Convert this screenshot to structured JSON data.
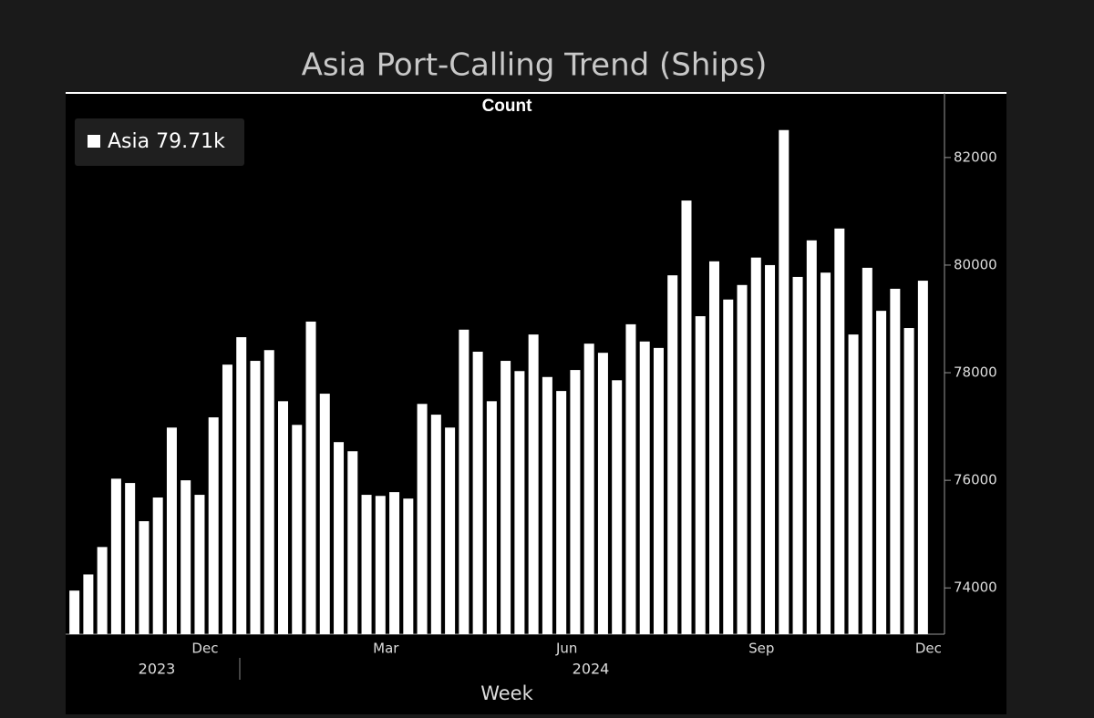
{
  "chart_data": {
    "type": "bar",
    "title": "Asia Port-Calling Trend (Ships)",
    "y_axis_label": "Count",
    "x_axis_label": "Week",
    "legend_text": "Asia 79.71k",
    "color": "#ffffff",
    "series": [
      {
        "name": "Asia",
        "color": "#ffffff",
        "values": [
          73950,
          74250,
          74760,
          76030,
          75950,
          75240,
          75680,
          76980,
          76000,
          75730,
          77170,
          78150,
          78660,
          78220,
          78420,
          77470,
          77030,
          78950,
          77610,
          76710,
          76540,
          75730,
          75710,
          75780,
          75660,
          77420,
          77220,
          76980,
          78800,
          78390,
          77470,
          78220,
          78030,
          78710,
          77920,
          77660,
          78050,
          78540,
          78370,
          77860,
          78900,
          78580,
          78460,
          79810,
          81200,
          79050,
          80070,
          79360,
          79630,
          80140,
          80000,
          82510,
          79780,
          80460,
          79860,
          80680,
          78710,
          79950,
          79150,
          79560,
          78830,
          79710
        ]
      }
    ],
    "categories": [
      null,
      null,
      null,
      null,
      null,
      null,
      null,
      null,
      null,
      "Dec",
      null,
      null,
      null,
      null,
      null,
      null,
      null,
      null,
      null,
      null,
      null,
      null,
      "Mar",
      null,
      null,
      null,
      null,
      null,
      null,
      null,
      null,
      null,
      null,
      null,
      null,
      "Jun",
      null,
      null,
      null,
      null,
      null,
      null,
      null,
      null,
      null,
      null,
      null,
      null,
      null,
      "Sep",
      null,
      null,
      null,
      null,
      null,
      null,
      null,
      null,
      null,
      null,
      null,
      "Dec"
    ],
    "year_labels": [
      "2023",
      "2024"
    ],
    "ylim": [
      73140,
      83200
    ],
    "yticks": [
      74000,
      76000,
      78000,
      80000,
      82000
    ],
    "y_axis_side": "right",
    "grid": false
  }
}
